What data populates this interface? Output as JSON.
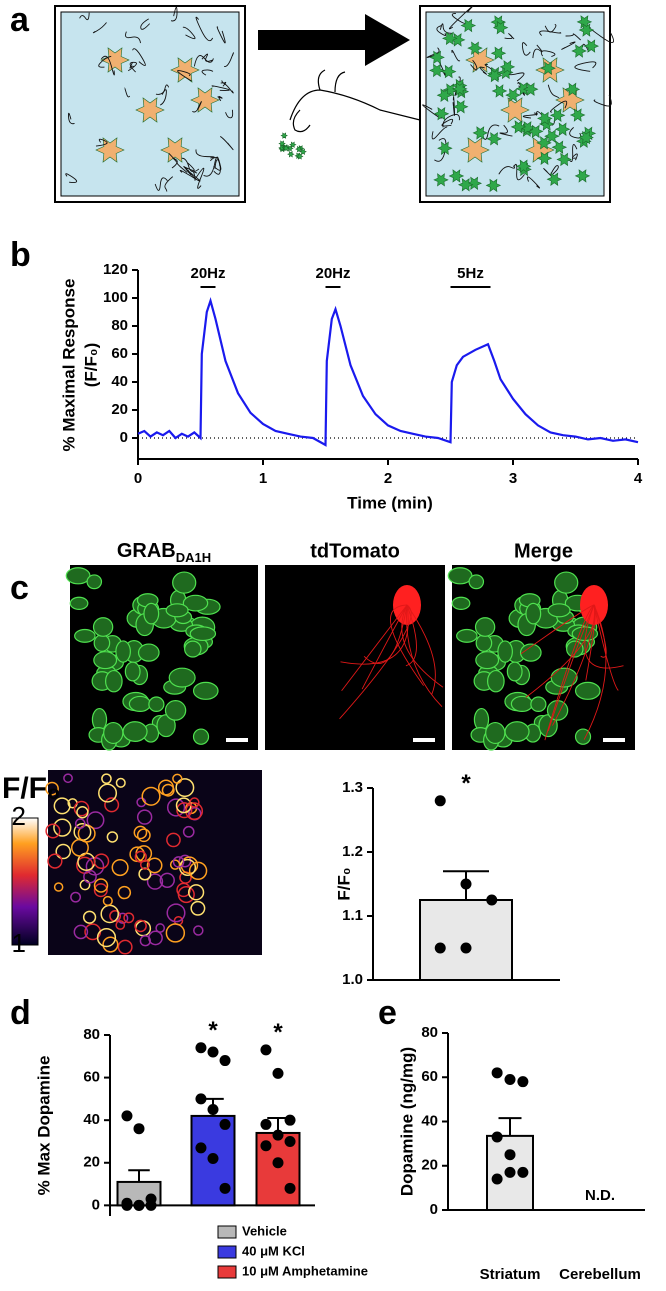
{
  "panel_labels": [
    "a",
    "b",
    "c",
    "d",
    "e"
  ],
  "images": {
    "titles": [
      {
        "text": "GRAB",
        "sub": "DA1H"
      },
      "tdTomato",
      "Merge"
    ],
    "colorbar": {
      "label": "F/F₀",
      "lim": [
        1,
        2
      ],
      "ticks": [
        2,
        1
      ]
    }
  },
  "chart_data": [
    {
      "type": "line",
      "xlabel": "Time  (min)",
      "ylabel": [
        "% Maximal Response",
        "(F/F₀)"
      ],
      "x": [
        0,
        0.05,
        0.1,
        0.15,
        0.2,
        0.25,
        0.3,
        0.35,
        0.4,
        0.45,
        0.5,
        0.51,
        0.55,
        0.58,
        0.62,
        0.7,
        0.8,
        0.9,
        1.0,
        1.1,
        1.2,
        1.3,
        1.4,
        1.5,
        1.51,
        1.55,
        1.58,
        1.62,
        1.7,
        1.8,
        1.9,
        2.0,
        2.1,
        2.2,
        2.3,
        2.4,
        2.5,
        2.51,
        2.55,
        2.6,
        2.7,
        2.8,
        2.85,
        2.9,
        3.0,
        3.1,
        3.2,
        3.3,
        3.4,
        3.5,
        3.6,
        3.7,
        3.8,
        3.9,
        4.0
      ],
      "values": [
        3,
        5,
        1,
        4,
        2,
        5,
        0,
        3,
        1,
        4,
        0,
        60,
        90,
        98,
        85,
        55,
        32,
        18,
        10,
        5,
        3,
        1,
        0,
        -5,
        55,
        85,
        92,
        80,
        52,
        30,
        17,
        9,
        5,
        3,
        1,
        0,
        -3,
        40,
        52,
        58,
        63,
        67,
        55,
        42,
        28,
        17,
        9,
        4,
        2,
        1,
        -1,
        0,
        -2,
        -1,
        -3
      ],
      "color": "#1a1aee",
      "hline": 0,
      "xlim": [
        0,
        4
      ],
      "xticks": [
        0,
        1,
        2,
        3,
        4
      ],
      "ylim": [
        -15,
        120
      ],
      "yticks": [
        0,
        20,
        40,
        60,
        80,
        100,
        120
      ],
      "annotations": [
        {
          "text": "20Hz",
          "x0": 0.5,
          "x1": 0.62
        },
        {
          "text": "20Hz",
          "x0": 1.5,
          "x1": 1.62
        },
        {
          "text": "5Hz",
          "x0": 2.5,
          "x1": 2.82
        }
      ]
    },
    {
      "type": "bar",
      "ylabel": "F/F₀",
      "categories": [
        null
      ],
      "values": [
        1.125
      ],
      "errors": [
        0.045
      ],
      "points": [
        [
          1.28,
          1.15,
          1.125,
          1.05,
          1.05
        ]
      ],
      "colors": [
        "#e8e8e8"
      ],
      "annotations": [
        "*"
      ],
      "ylim": [
        1.0,
        1.3
      ],
      "yticks": [
        {
          "value": 1.0,
          "label": "1.0"
        },
        1.1,
        1.2,
        1.3
      ]
    },
    {
      "type": "bar",
      "ylabel": "% Max Dopamine",
      "categories": [
        "Vehicle",
        "40 μM KCl",
        "10 μM Amphetamine"
      ],
      "values": [
        11,
        42,
        34
      ],
      "errors": [
        5.5,
        8,
        7
      ],
      "points": [
        [
          42,
          36,
          3,
          1,
          0,
          0,
          0,
          0
        ],
        [
          74,
          72,
          68,
          50,
          45,
          38,
          27,
          22,
          8
        ],
        [
          73,
          62,
          40,
          38,
          33,
          30,
          28,
          20,
          8
        ]
      ],
      "colors": [
        "#b8b8b8",
        "#3a3ae0",
        "#e83a3a"
      ],
      "annotations": [
        null,
        "*",
        "*"
      ],
      "ylim": [
        -5,
        80
      ],
      "yticks": [
        0,
        20,
        40,
        60,
        80
      ]
    },
    {
      "type": "bar",
      "ylabel": "Dopamine (ng/mg)",
      "categories": [
        "Striatum",
        "Cerebellum"
      ],
      "values": [
        33.5,
        null
      ],
      "value_labels": [
        null,
        "N.D."
      ],
      "errors": [
        8,
        null
      ],
      "points": [
        [
          62,
          59,
          58,
          33,
          25,
          17,
          14,
          17
        ],
        []
      ],
      "colors": [
        "#e8e8e8",
        "#e8e8e8"
      ],
      "ylim": [
        0,
        80
      ],
      "yticks": [
        0,
        20,
        40,
        60,
        80
      ]
    }
  ]
}
